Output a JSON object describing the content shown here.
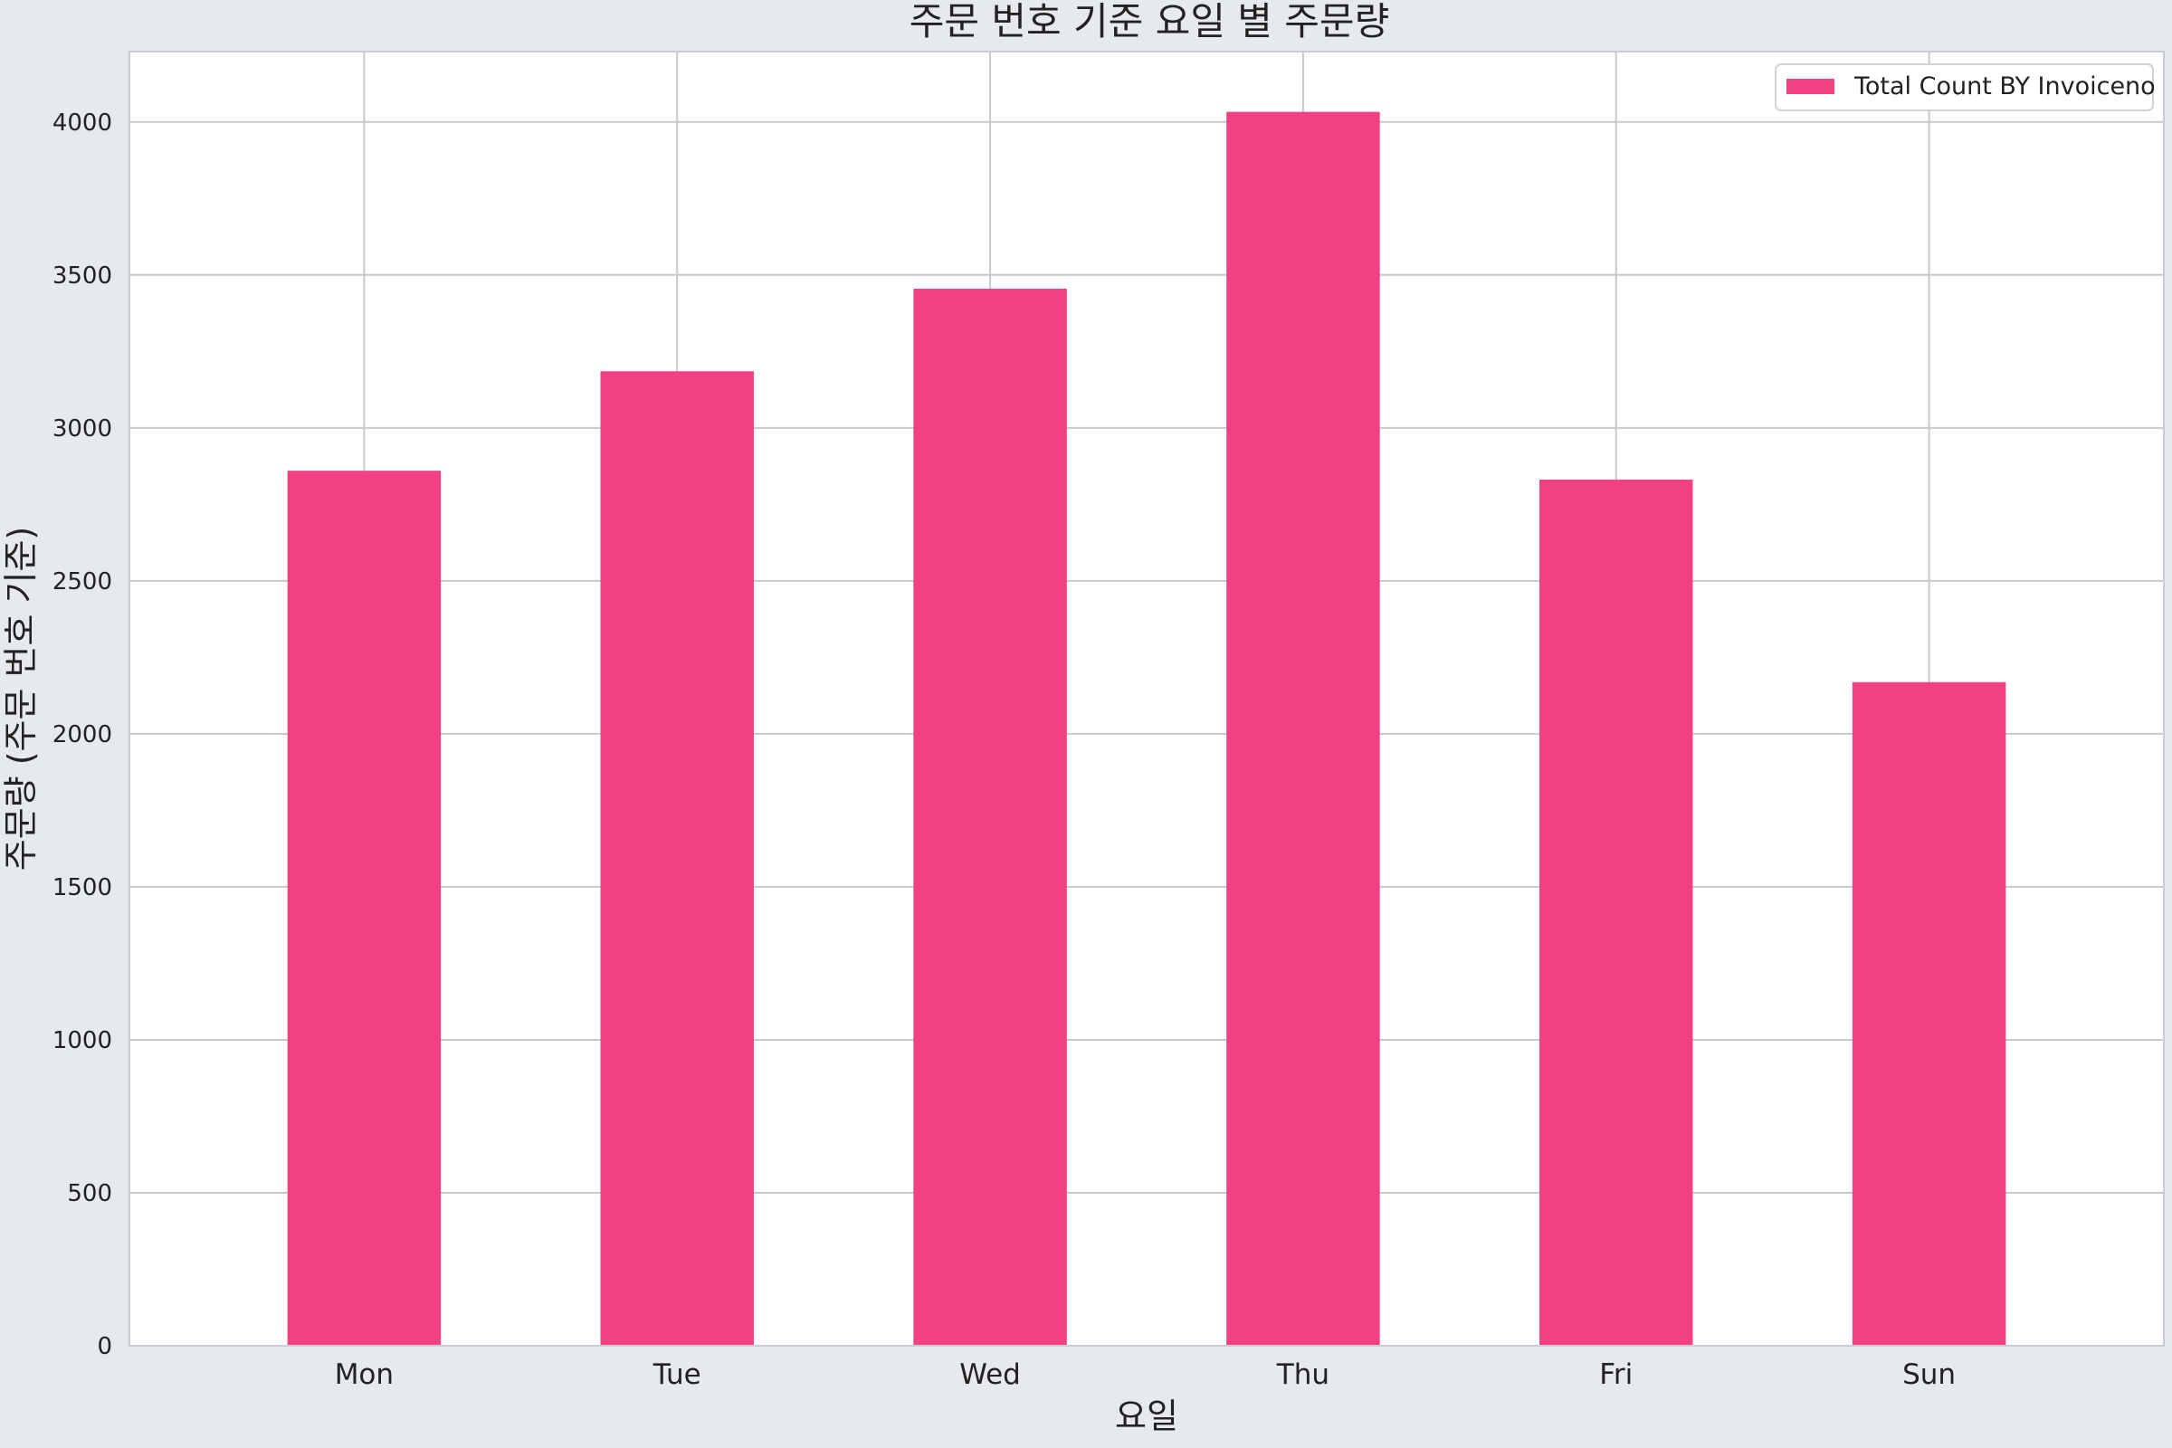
{
  "chart_data": {
    "type": "bar",
    "title": "주문 번호 기준 요일 별 주문량",
    "xlabel": "요일",
    "ylabel": "주문량 (주문 번호 기준)",
    "categories": [
      "Mon",
      "Tue",
      "Wed",
      "Thu",
      "Fri",
      "Sun"
    ],
    "series": [
      {
        "name": "Total Count BY Invoiceno",
        "values": [
          2860,
          3185,
          3455,
          4033,
          2831,
          2169
        ]
      }
    ],
    "ylim": [
      0,
      4230
    ],
    "yticks": [
      0,
      500,
      1000,
      1500,
      2000,
      2500,
      3000,
      3500,
      4000
    ],
    "grid": true,
    "legend_position": "top-right",
    "colors": {
      "bar": "#f14182",
      "background": "#e6e9ee",
      "plot_background": "#ffffff",
      "grid": "#c8c8c8",
      "axis": "#c8ccd4"
    }
  }
}
